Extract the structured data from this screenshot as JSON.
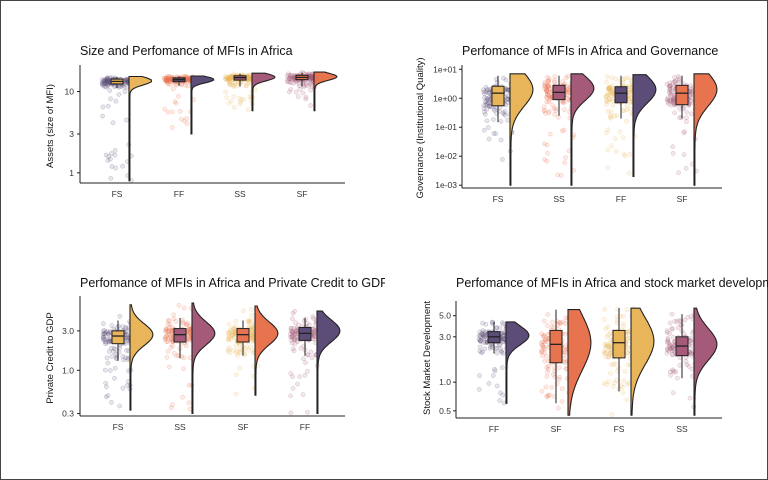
{
  "colors": {
    "purple": "#5b4d78",
    "orange": "#e8744f",
    "gold": "#e9b55a",
    "mauve": "#a45a78"
  },
  "chart_data": [
    {
      "type": "raincloud",
      "title": "Size and Perfomance of MFIs in Africa",
      "ylabel": "Assets (size of MFI)",
      "scale": "log",
      "ylim": [
        0.75,
        20
      ],
      "yticks": [
        {
          "v": 1,
          "l": "1"
        },
        {
          "v": 3,
          "l": "3"
        },
        {
          "v": 10,
          "l": "10"
        }
      ],
      "categories": [
        "FS",
        "FF",
        "SS",
        "SF"
      ],
      "groups": [
        {
          "cat": "FS",
          "point_color": "#5b4d78",
          "dens_color": "#e9b55a",
          "box_color": "#e9b55a",
          "min": 0.8,
          "q1": 12.4,
          "median": 13.3,
          "q3": 14.2,
          "max": 15.3,
          "whisker_lo": 11.0,
          "whisker_hi": 15.0,
          "density_peak": 13.5
        },
        {
          "cat": "FF",
          "point_color": "#e8744f",
          "dens_color": "#5b4d78",
          "box_color": "#5b4d78",
          "min": 3.0,
          "q1": 13.2,
          "median": 14.0,
          "q3": 14.7,
          "max": 15.5,
          "whisker_lo": 11.8,
          "whisker_hi": 15.3,
          "density_peak": 14.0
        },
        {
          "cat": "SS",
          "point_color": "#e9b55a",
          "dens_color": "#a45a78",
          "box_color": "#a45a78",
          "min": 5.8,
          "q1": 13.8,
          "median": 14.8,
          "q3": 15.6,
          "max": 16.8,
          "whisker_lo": 11.5,
          "whisker_hi": 16.5,
          "density_peak": 15.0
        },
        {
          "cat": "SF",
          "point_color": "#a45a78",
          "dens_color": "#e8744f",
          "box_color": "#e8744f",
          "min": 5.8,
          "q1": 14.0,
          "median": 14.9,
          "q3": 15.8,
          "max": 17.3,
          "whisker_lo": 11.5,
          "whisker_hi": 17.0,
          "density_peak": 15.2
        }
      ]
    },
    {
      "type": "raincloud",
      "title": "Perfomance of MFIs in Africa and Governance",
      "ylabel": "Governance (Institutional Quality)",
      "scale": "log",
      "ylim": [
        0.0008,
        12
      ],
      "yticks": [
        {
          "v": 0.001,
          "l": "1e-03"
        },
        {
          "v": 0.01,
          "l": "1e-02"
        },
        {
          "v": 0.1,
          "l": "1e-01"
        },
        {
          "v": 1,
          "l": "1e+00"
        },
        {
          "v": 10,
          "l": "1e+01"
        }
      ],
      "categories": [
        "FS",
        "SS",
        "FF",
        "SF"
      ],
      "groups": [
        {
          "cat": "FS",
          "point_color": "#5b4d78",
          "dens_color": "#e9b55a",
          "box_color": "#e9b55a",
          "min": 0.001,
          "q1": 0.55,
          "median": 1.5,
          "q3": 2.6,
          "max": 7.0,
          "whisker_lo": 0.15,
          "whisker_hi": 6.0,
          "density_peak": 2.0
        },
        {
          "cat": "SS",
          "point_color": "#e8744f",
          "dens_color": "#a45a78",
          "box_color": "#a45a78",
          "min": 0.001,
          "q1": 0.9,
          "median": 1.6,
          "q3": 2.8,
          "max": 7.0,
          "whisker_lo": 0.25,
          "whisker_hi": 6.0,
          "density_peak": 2.2
        },
        {
          "cat": "FF",
          "point_color": "#e9b55a",
          "dens_color": "#5b4d78",
          "box_color": "#5b4d78",
          "min": 0.002,
          "q1": 0.7,
          "median": 1.5,
          "q3": 2.5,
          "max": 6.5,
          "whisker_lo": 0.2,
          "whisker_hi": 6.0,
          "density_peak": 2.0
        },
        {
          "cat": "SF",
          "point_color": "#a45a78",
          "dens_color": "#e8744f",
          "box_color": "#e8744f",
          "min": 0.001,
          "q1": 0.6,
          "median": 1.5,
          "q3": 2.8,
          "max": 7.0,
          "whisker_lo": 0.2,
          "whisker_hi": 6.0,
          "density_peak": 2.0
        }
      ]
    },
    {
      "type": "raincloud",
      "title": "Perfomance of MFIs in Africa and Private Credit to GDP",
      "ylabel": "Private Credit to GDP",
      "scale": "log",
      "ylim": [
        0.28,
        7.5
      ],
      "yticks": [
        {
          "v": 0.3,
          "l": "0.3"
        },
        {
          "v": 1,
          "l": "1.0"
        },
        {
          "v": 3,
          "l": "3.0"
        }
      ],
      "categories": [
        "FS",
        "SS",
        "SF",
        "FF"
      ],
      "groups": [
        {
          "cat": "FS",
          "point_color": "#5b4d78",
          "dens_color": "#e9b55a",
          "box_color": "#e9b55a",
          "min": 0.33,
          "q1": 2.1,
          "median": 2.6,
          "q3": 3.0,
          "max": 6.2,
          "whisker_lo": 1.3,
          "whisker_hi": 4.0,
          "density_peak": 2.7
        },
        {
          "cat": "SS",
          "point_color": "#e8744f",
          "dens_color": "#a45a78",
          "box_color": "#a45a78",
          "min": 0.3,
          "q1": 2.2,
          "median": 2.7,
          "q3": 3.2,
          "max": 6.5,
          "whisker_lo": 1.4,
          "whisker_hi": 4.3,
          "density_peak": 2.8
        },
        {
          "cat": "SF",
          "point_color": "#e9b55a",
          "dens_color": "#e8744f",
          "box_color": "#e8744f",
          "min": 0.5,
          "q1": 2.2,
          "median": 2.7,
          "q3": 3.2,
          "max": 6.0,
          "whisker_lo": 1.5,
          "whisker_hi": 4.0,
          "density_peak": 2.8
        },
        {
          "cat": "FF",
          "point_color": "#a45a78",
          "dens_color": "#5b4d78",
          "box_color": "#5b4d78",
          "min": 0.3,
          "q1": 2.3,
          "median": 2.8,
          "q3": 3.3,
          "max": 5.2,
          "whisker_lo": 1.5,
          "whisker_hi": 4.3,
          "density_peak": 3.0
        }
      ]
    },
    {
      "type": "raincloud",
      "title": "Perfomance of MFIs in Africa and stock market development",
      "ylabel": "Stock Market Development",
      "scale": "log",
      "ylim": [
        0.42,
        6.8
      ],
      "yticks": [
        {
          "v": 0.5,
          "l": "0.5"
        },
        {
          "v": 1,
          "l": "1.0"
        },
        {
          "v": 3,
          "l": "3.0"
        },
        {
          "v": 5,
          "l": "5.0"
        }
      ],
      "categories": [
        "FF",
        "SF",
        "FS",
        "SS"
      ],
      "groups": [
        {
          "cat": "FF",
          "point_color": "#5b4d78",
          "dens_color": "#5b4d78",
          "box_color": "#5b4d78",
          "min": 0.6,
          "q1": 2.6,
          "median": 3.0,
          "q3": 3.4,
          "max": 4.3,
          "whisker_lo": 2.0,
          "whisker_hi": 4.3,
          "density_peak": 3.1
        },
        {
          "cat": "SF",
          "point_color": "#e8744f",
          "dens_color": "#e8744f",
          "box_color": "#e8744f",
          "min": 0.45,
          "q1": 1.6,
          "median": 2.5,
          "q3": 3.5,
          "max": 5.8,
          "whisker_lo": 0.6,
          "whisker_hi": 5.8,
          "density_peak": 2.6
        },
        {
          "cat": "FS",
          "point_color": "#e9b55a",
          "dens_color": "#e9b55a",
          "box_color": "#e9b55a",
          "min": 0.45,
          "q1": 1.8,
          "median": 2.6,
          "q3": 3.5,
          "max": 6.0,
          "whisker_lo": 0.8,
          "whisker_hi": 6.0,
          "density_peak": 2.7
        },
        {
          "cat": "SS",
          "point_color": "#a45a78",
          "dens_color": "#a45a78",
          "box_color": "#a45a78",
          "min": 0.45,
          "q1": 1.9,
          "median": 2.4,
          "q3": 3.0,
          "max": 6.0,
          "whisker_lo": 1.1,
          "whisker_hi": 5.2,
          "density_peak": 2.5
        }
      ]
    }
  ]
}
